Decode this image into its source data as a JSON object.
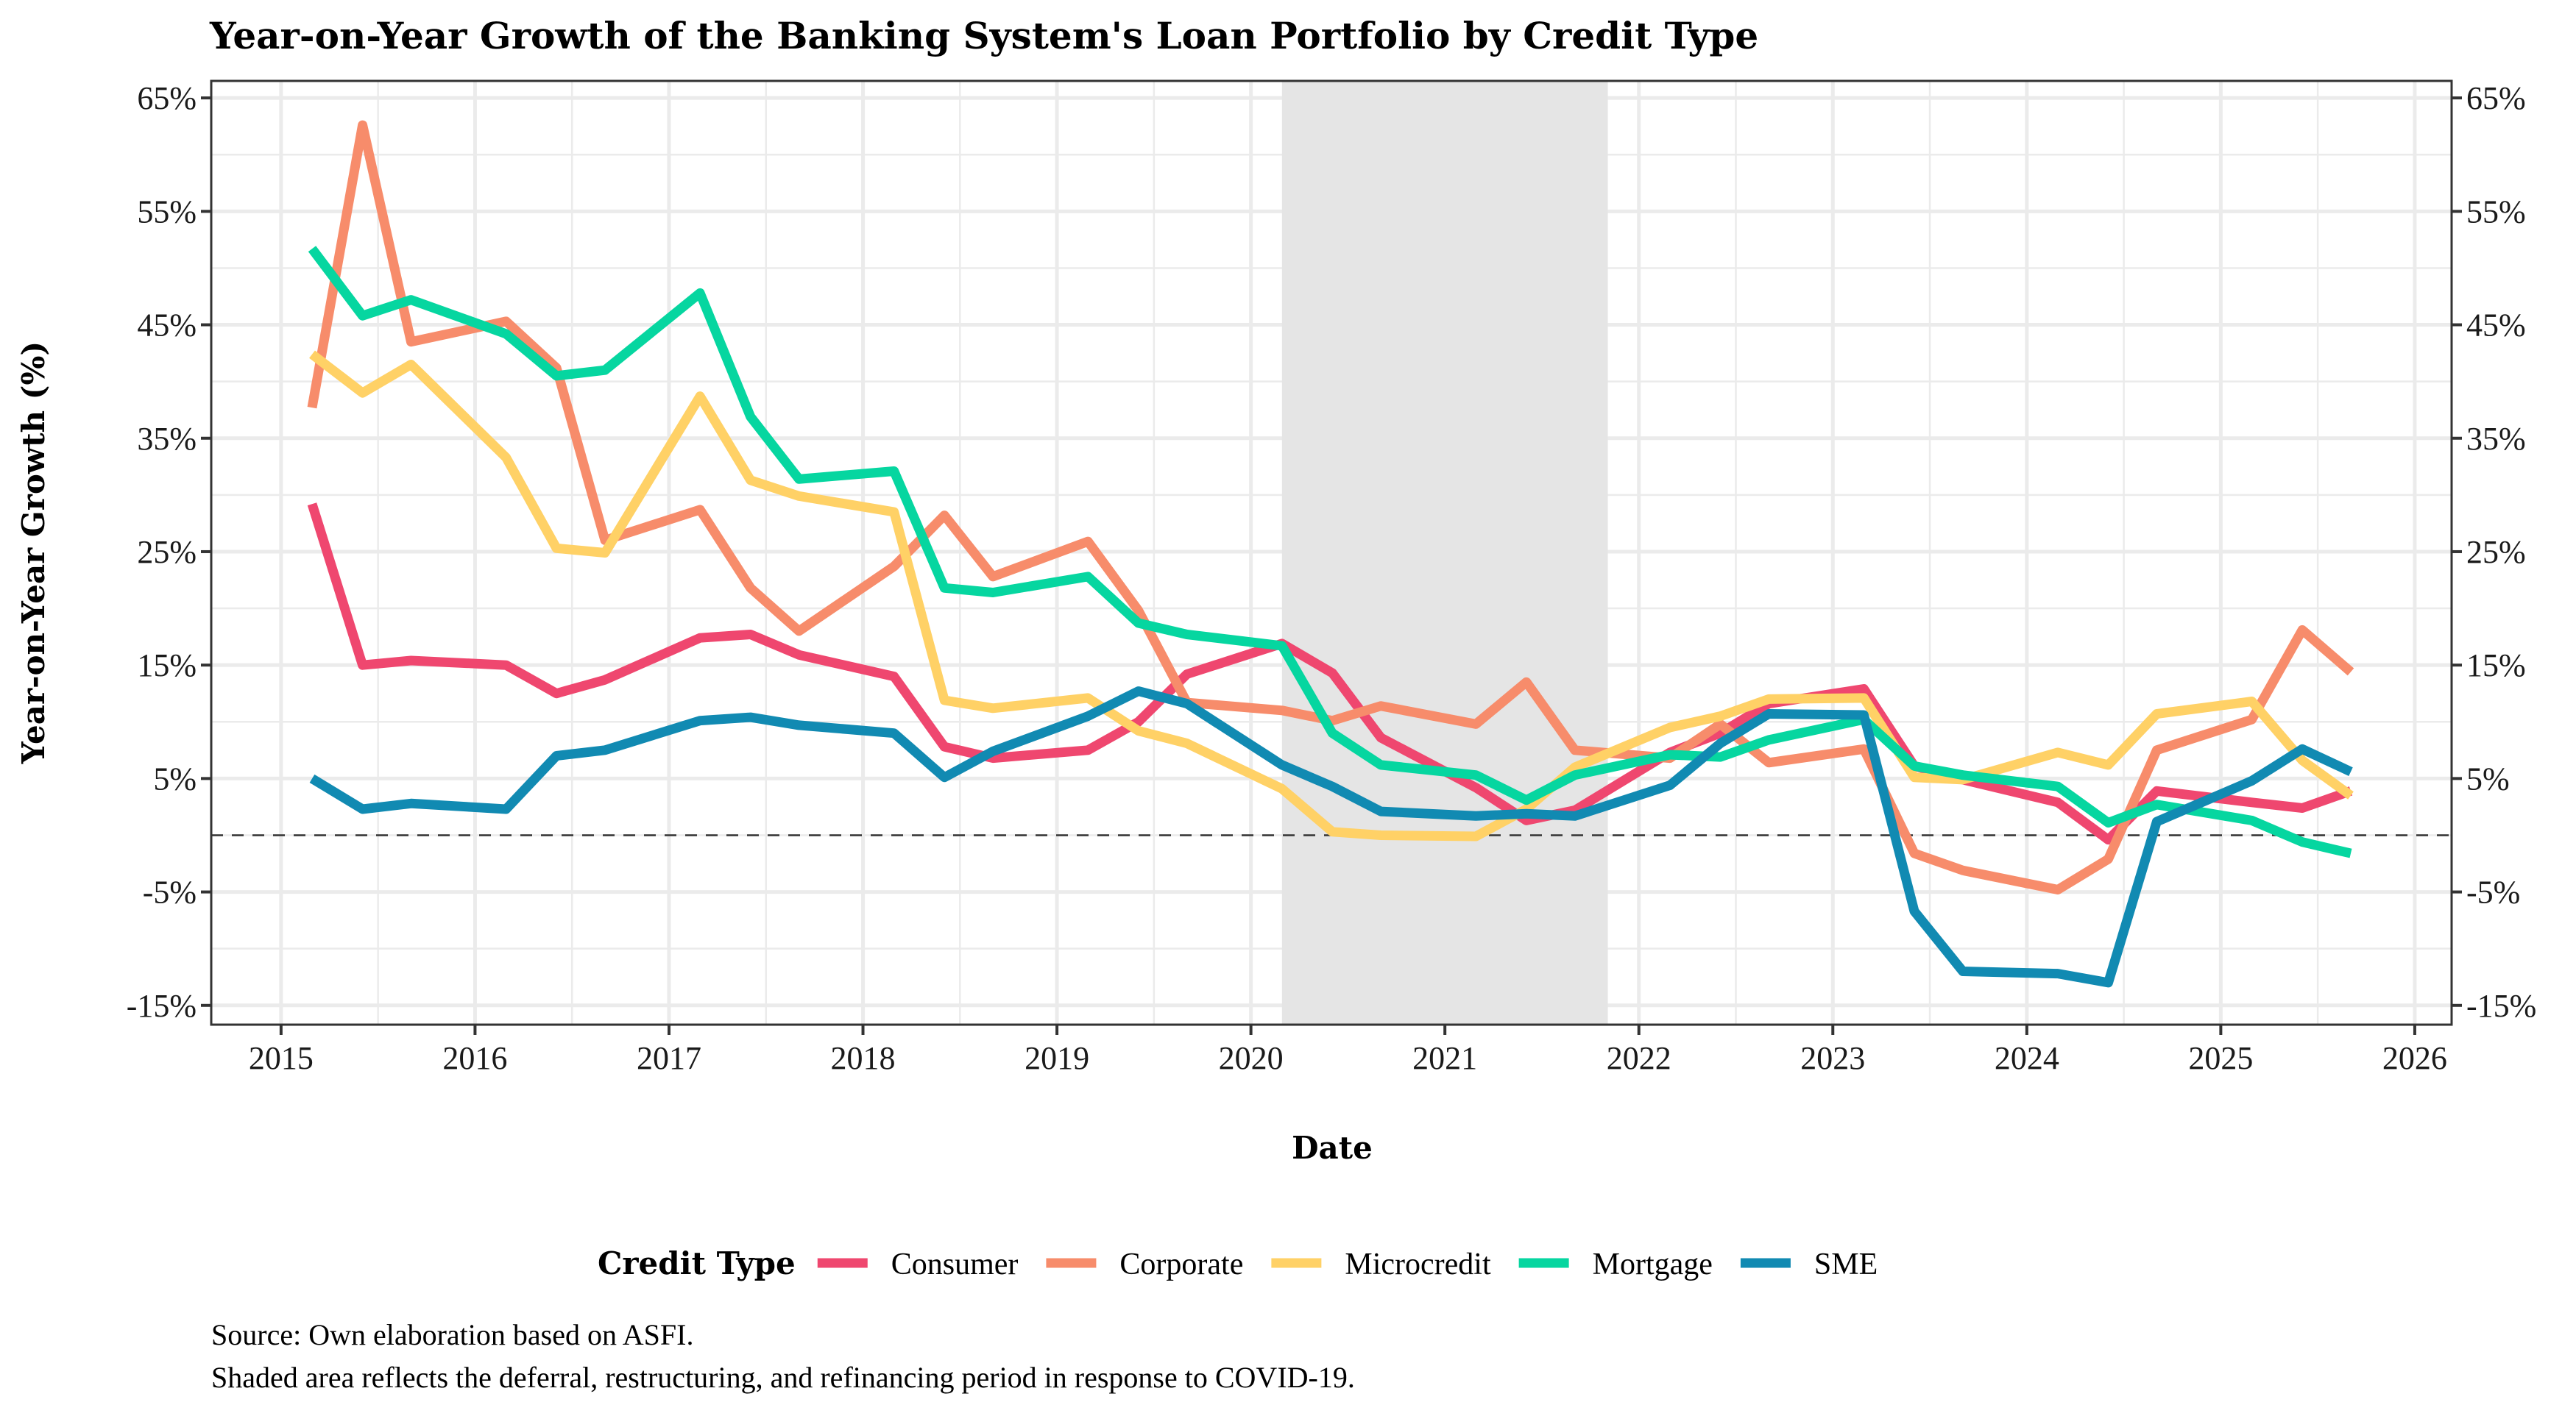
{
  "chart_data": {
    "type": "line",
    "title": "Year-on-Year Growth of the Banking System's Loan Portfolio by Credit Type",
    "xlabel": "Date",
    "ylabel": "Year-on-Year Growth (%)",
    "xlim": [
      2014.64,
      2026.19
    ],
    "ylim": [
      -16.7,
      66.5
    ],
    "x_ticks": [
      2015,
      2016,
      2017,
      2018,
      2019,
      2020,
      2021,
      2022,
      2023,
      2024,
      2025,
      2026
    ],
    "x_tick_labels": [
      "2015",
      "2016",
      "2017",
      "2018",
      "2019",
      "2020",
      "2021",
      "2022",
      "2023",
      "2024",
      "2025",
      "2026"
    ],
    "y_ticks": [
      65,
      55,
      45,
      35,
      25,
      15,
      5,
      -5,
      -15
    ],
    "y_tick_labels": [
      "65%",
      "55%",
      "45%",
      "35%",
      "25%",
      "15%",
      "5%",
      "-5%",
      "-15%"
    ],
    "y_minor_ticks": [
      60,
      50,
      40,
      30,
      20,
      10,
      0,
      -10
    ],
    "grid": true,
    "secondary_y_axis": true,
    "reference_line": {
      "y": 0,
      "style": "dashed",
      "color": "#333333"
    },
    "shaded_region": {
      "x_start": 2020.16,
      "x_end": 2021.84,
      "color": "#E5E5E5",
      "meaning": "Deferral, restructuring, and refinancing period (COVID-19)"
    },
    "x": [
      "2015-03",
      "2015-06",
      "2015-09",
      "2016-03",
      "2016-06",
      "2016-09",
      "2017-03",
      "2017-06",
      "2017-09",
      "2018-03",
      "2018-06",
      "2018-09",
      "2019-03",
      "2019-06",
      "2019-09",
      "2020-03",
      "2020-06",
      "2020-09",
      "2021-03",
      "2021-06",
      "2021-09",
      "2022-03",
      "2022-06",
      "2022-09",
      "2023-03",
      "2023-06",
      "2023-09",
      "2024-03",
      "2024-06",
      "2024-09",
      "2025-03",
      "2025-06",
      "2025-09"
    ],
    "x_numeric": [
      2015.16,
      2015.42,
      2015.67,
      2016.16,
      2016.42,
      2016.67,
      2017.16,
      2017.42,
      2017.67,
      2018.16,
      2018.42,
      2018.67,
      2019.16,
      2019.42,
      2019.67,
      2020.16,
      2020.42,
      2020.67,
      2021.16,
      2021.42,
      2021.67,
      2022.16,
      2022.42,
      2022.67,
      2023.16,
      2023.42,
      2023.67,
      2024.16,
      2024.42,
      2024.67,
      2025.16,
      2025.42,
      2025.67
    ],
    "series": [
      {
        "name": "Consumer",
        "color": "#EF476F",
        "values": [
          29.2,
          15.0,
          15.4,
          15.0,
          12.5,
          13.7,
          17.4,
          17.7,
          15.9,
          14.0,
          7.8,
          6.8,
          7.5,
          10.0,
          14.2,
          16.9,
          14.3,
          8.6,
          4.2,
          1.3,
          2.2,
          7.3,
          9.0,
          11.6,
          12.9,
          6.1,
          4.9,
          2.9,
          -0.4,
          3.9,
          2.9,
          2.4,
          3.9
        ]
      },
      {
        "name": "Corporate",
        "color": "#F78C6B",
        "values": [
          37.7,
          62.6,
          43.5,
          45.3,
          41.2,
          26.0,
          28.7,
          21.8,
          18.0,
          23.7,
          28.2,
          22.8,
          25.9,
          19.8,
          11.7,
          11.0,
          10.1,
          11.4,
          9.8,
          13.5,
          7.5,
          6.8,
          9.8,
          6.4,
          7.6,
          -1.6,
          -3.1,
          -4.8,
          -2.1,
          7.5,
          10.2,
          18.1,
          14.4
        ]
      },
      {
        "name": "Microcredit",
        "color": "#FFD166",
        "values": [
          42.4,
          39.0,
          41.5,
          33.3,
          25.3,
          24.9,
          38.7,
          31.3,
          29.9,
          28.5,
          11.9,
          11.2,
          12.1,
          9.2,
          8.1,
          4.1,
          0.3,
          0.0,
          -0.1,
          2.3,
          6.0,
          9.5,
          10.5,
          12.0,
          12.1,
          5.1,
          4.9,
          7.3,
          6.2,
          10.7,
          11.8,
          6.6,
          3.5
        ]
      },
      {
        "name": "Mortgage",
        "color": "#06D6A0",
        "values": [
          51.7,
          45.8,
          47.2,
          44.2,
          40.5,
          41.0,
          47.8,
          36.9,
          31.4,
          32.1,
          21.8,
          21.4,
          22.8,
          18.7,
          17.7,
          16.7,
          9.0,
          6.2,
          5.3,
          3.1,
          5.3,
          7.1,
          6.9,
          8.4,
          10.2,
          6.1,
          5.3,
          4.3,
          1.1,
          2.7,
          1.3,
          -0.6,
          -1.6
        ]
      },
      {
        "name": "SME",
        "color": "#118AB2",
        "values": [
          5.0,
          2.3,
          2.8,
          2.3,
          7.0,
          7.5,
          10.1,
          10.4,
          9.7,
          9.0,
          5.1,
          7.4,
          10.5,
          12.7,
          11.6,
          6.2,
          4.3,
          2.1,
          1.7,
          1.9,
          1.7,
          4.4,
          8.1,
          10.7,
          10.6,
          -6.7,
          -12.0,
          -12.2,
          -13.0,
          1.2,
          4.8,
          7.6,
          5.6
        ]
      }
    ],
    "legend": {
      "title": "Credit Type",
      "position": "bottom",
      "entries": [
        "Consumer",
        "Corporate",
        "Microcredit",
        "Mortgage",
        "SME"
      ]
    },
    "caption": [
      "Source: Own elaboration based on ASFI.",
      "Shaded area reflects the deferral, restructuring, and refinancing period in response to COVID-19."
    ]
  }
}
